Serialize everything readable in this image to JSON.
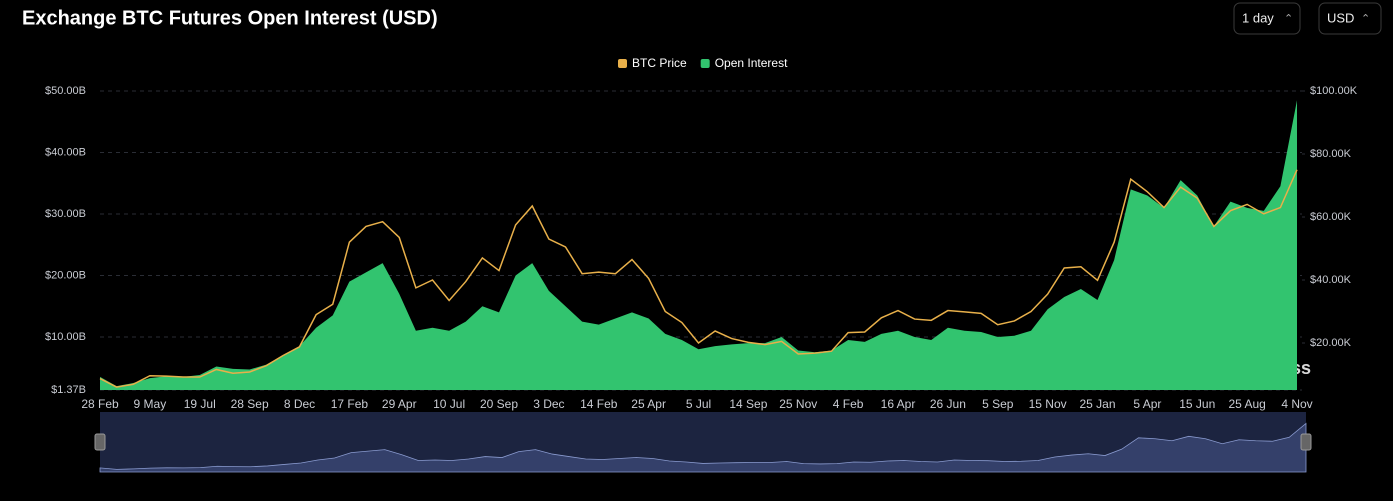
{
  "chart_data": {
    "type": "line",
    "title": "Exchange BTC Futures Open Interest (USD)",
    "categories": [
      "28 Feb",
      null,
      null,
      "9 May",
      null,
      null,
      "19 Jul",
      null,
      null,
      "28 Sep",
      null,
      null,
      "8 Dec",
      null,
      null,
      "17 Feb",
      null,
      null,
      "29 Apr",
      null,
      null,
      "10 Jul",
      null,
      null,
      "20 Sep",
      null,
      null,
      "3 Dec",
      null,
      null,
      "14 Feb",
      null,
      null,
      "25 Apr",
      null,
      null,
      "5 Jul",
      null,
      null,
      "14 Sep",
      null,
      null,
      "25 Nov",
      null,
      null,
      "4 Feb",
      null,
      null,
      "16 Apr",
      null,
      null,
      "26 Jun",
      null,
      null,
      "5 Sep",
      null,
      null,
      "15 Nov",
      null,
      null,
      "25 Jan",
      null,
      null,
      "5 Apr",
      null,
      null,
      "15 Jun",
      null,
      null,
      "25 Aug",
      null,
      null,
      "4 Nov"
    ],
    "series": [
      {
        "name": "BTC Price",
        "type": "line",
        "axis": "y2",
        "color": "#e8b04a",
        "values": [
          8.7,
          6.0,
          6.9,
          9.6,
          9.5,
          9.2,
          9.2,
          11.6,
          10.4,
          10.8,
          12.8,
          16.0,
          18.8,
          29.0,
          32.3,
          52.0,
          57.0,
          58.5,
          53.5,
          37.5,
          40.0,
          33.5,
          39.5,
          47.0,
          43.0,
          57.5,
          63.5,
          53.0,
          50.5,
          42.0,
          42.5,
          42.0,
          46.5,
          40.5,
          30.0,
          26.5,
          20.0,
          23.8,
          21.4,
          20.2,
          19.5,
          20.5,
          16.5,
          16.8,
          17.4,
          23.3,
          23.5,
          28.0,
          30.3,
          27.6,
          27.2,
          30.3,
          29.9,
          29.4,
          25.8,
          27.0,
          30.0,
          35.5,
          43.8,
          44.2,
          39.9,
          52.0,
          72.0,
          68.0,
          63.0,
          69.5,
          66.0,
          57.0,
          62.0,
          64.0,
          61.0,
          63.0,
          75.0
        ]
      },
      {
        "name": "Open Interest",
        "type": "area",
        "axis": "y",
        "color": "#32c46f",
        "values": [
          3.5,
          2.0,
          2.5,
          3.3,
          3.6,
          3.5,
          3.8,
          5.2,
          4.8,
          4.7,
          5.5,
          7.0,
          8.5,
          11.5,
          13.5,
          19.0,
          20.5,
          22.0,
          17.0,
          11.0,
          11.5,
          11.0,
          12.5,
          15.0,
          14.0,
          20.0,
          22.0,
          17.5,
          15.0,
          12.5,
          12.0,
          13.0,
          14.0,
          13.0,
          10.5,
          9.5,
          8.0,
          8.5,
          8.8,
          9.0,
          9.0,
          10.0,
          7.8,
          7.5,
          7.8,
          9.5,
          9.2,
          10.5,
          11.0,
          10.0,
          9.5,
          11.5,
          11.0,
          10.8,
          10.0,
          10.2,
          11.0,
          14.5,
          16.5,
          17.8,
          16.0,
          22.5,
          34.0,
          33.0,
          31.0,
          35.5,
          33.0,
          28.0,
          32.0,
          31.0,
          30.5,
          34.5,
          48.5
        ]
      }
    ],
    "ylim": [
      1.37,
      50
    ],
    "yticks": [
      {
        "value": 1.37,
        "label": "$1.37B"
      },
      {
        "value": 10,
        "label": "$10.00B"
      },
      {
        "value": 20,
        "label": "$20.00B"
      },
      {
        "value": 30,
        "label": "$30.00B"
      },
      {
        "value": 40,
        "label": "$40.00B"
      },
      {
        "value": 50,
        "label": "$50.00B"
      }
    ],
    "y2lim": [
      5.08,
      100
    ],
    "y2ticks": [
      {
        "value": 20,
        "label": "$20.00K"
      },
      {
        "value": 40,
        "label": "$40.00K"
      },
      {
        "value": 60,
        "label": "$60.00K"
      },
      {
        "value": 80,
        "label": "$80.00K"
      },
      {
        "value": 100,
        "label": "$100.00K"
      }
    ],
    "grid": true,
    "legend": "top"
  },
  "controls": {
    "interval": "1 day",
    "currency": "USD"
  },
  "watermark": "coinglass"
}
